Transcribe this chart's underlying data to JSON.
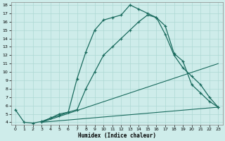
{
  "xlabel": "Humidex (Indice chaleur)",
  "bg_color": "#ceecea",
  "grid_color": "#aed8d4",
  "line_color": "#1a6b5e",
  "xlim": [
    -0.5,
    23.5
  ],
  "ylim": [
    3.7,
    18.3
  ],
  "yticks": [
    4,
    5,
    6,
    7,
    8,
    9,
    10,
    11,
    12,
    13,
    14,
    15,
    16,
    17,
    18
  ],
  "xticks": [
    0,
    1,
    2,
    3,
    4,
    5,
    6,
    7,
    8,
    9,
    10,
    11,
    12,
    13,
    14,
    15,
    16,
    17,
    18,
    19,
    20,
    21,
    22,
    23
  ],
  "line1_x": [
    0,
    1,
    2,
    3,
    4,
    5,
    6,
    7,
    8,
    9,
    10,
    11,
    12,
    13,
    14,
    15,
    16,
    17,
    18,
    19,
    20,
    21,
    22,
    23
  ],
  "line1_y": [
    5.5,
    4.0,
    3.9,
    4.1,
    4.5,
    4.8,
    5.2,
    9.2,
    12.4,
    15.0,
    16.2,
    16.5,
    16.8,
    18.0,
    17.5,
    17.0,
    16.5,
    15.5,
    12.2,
    11.3,
    8.5,
    7.5,
    6.5,
    5.8
  ],
  "line2_x": [
    3,
    4,
    5,
    6,
    7,
    8,
    9,
    10,
    11,
    12,
    13,
    14,
    15,
    16,
    17,
    18,
    19,
    20,
    21,
    22,
    23
  ],
  "line2_y": [
    4.0,
    4.5,
    5.0,
    5.2,
    5.5,
    8.0,
    10.0,
    12.0,
    13.0,
    14.0,
    15.0,
    16.0,
    16.8,
    16.5,
    14.5,
    12.0,
    10.5,
    9.5,
    8.5,
    7.0,
    5.8
  ],
  "line3_x": [
    3,
    23
  ],
  "line3_y": [
    4.0,
    11.0
  ],
  "line4_x": [
    3,
    23
  ],
  "line4_y": [
    4.0,
    5.8
  ]
}
